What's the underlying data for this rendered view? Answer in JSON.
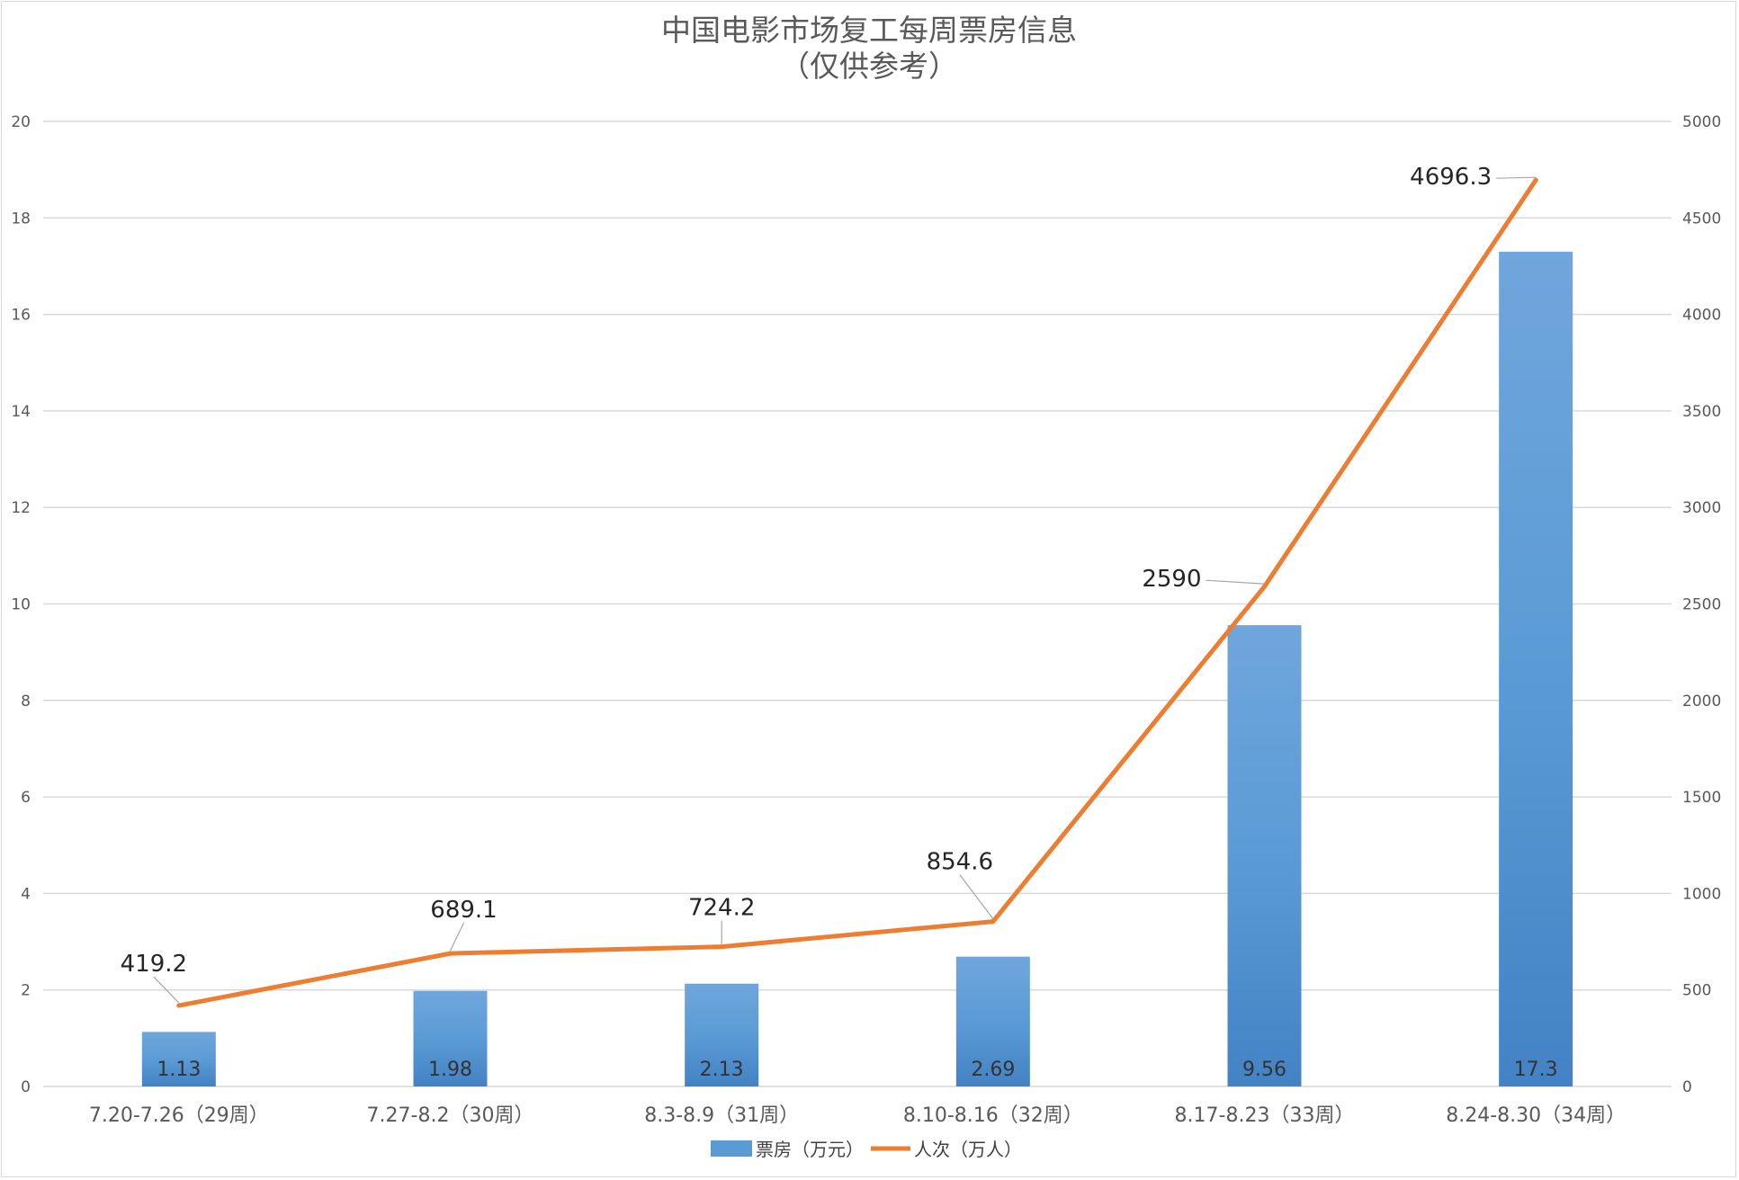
{
  "chart_data": {
    "type": "bar",
    "title": "中国电影市场复工每周票房信息",
    "subtitle": "（仅供参考）",
    "categories": [
      "7.20-7.26（29周）",
      "7.27-8.2（30周）",
      "8.3-8.9（31周）",
      "8.10-8.16（32周）",
      "8.17-8.23（33周）",
      "8.24-8.30（34周）"
    ],
    "series": [
      {
        "name": "票房（万元）",
        "type": "bar",
        "axis": "left",
        "values": [
          1.13,
          1.98,
          2.13,
          2.69,
          9.56,
          17.3
        ],
        "labels": [
          "1.13",
          "1.98",
          "2.13",
          "2.69",
          "9.56",
          "17.3"
        ]
      },
      {
        "name": "人次（万人）",
        "type": "line",
        "axis": "right",
        "values": [
          419.2,
          689.1,
          724.2,
          854.6,
          2590,
          4696.3
        ],
        "labels": [
          "419.2",
          "689.1",
          "724.2",
          "854.6",
          "2590",
          "4696.3"
        ]
      }
    ],
    "y_left": {
      "min": 0,
      "max": 20,
      "step": 2
    },
    "y_right": {
      "min": 0,
      "max": 5000,
      "step": 500
    },
    "grid": true,
    "legend_position": "bottom",
    "colors": {
      "bar_top": "#6fa6dc",
      "bar_mid": "#5b9bd5",
      "bar_bottom": "#4382c4",
      "line": "#ed7d31",
      "grid": "#d9d9d9"
    }
  }
}
